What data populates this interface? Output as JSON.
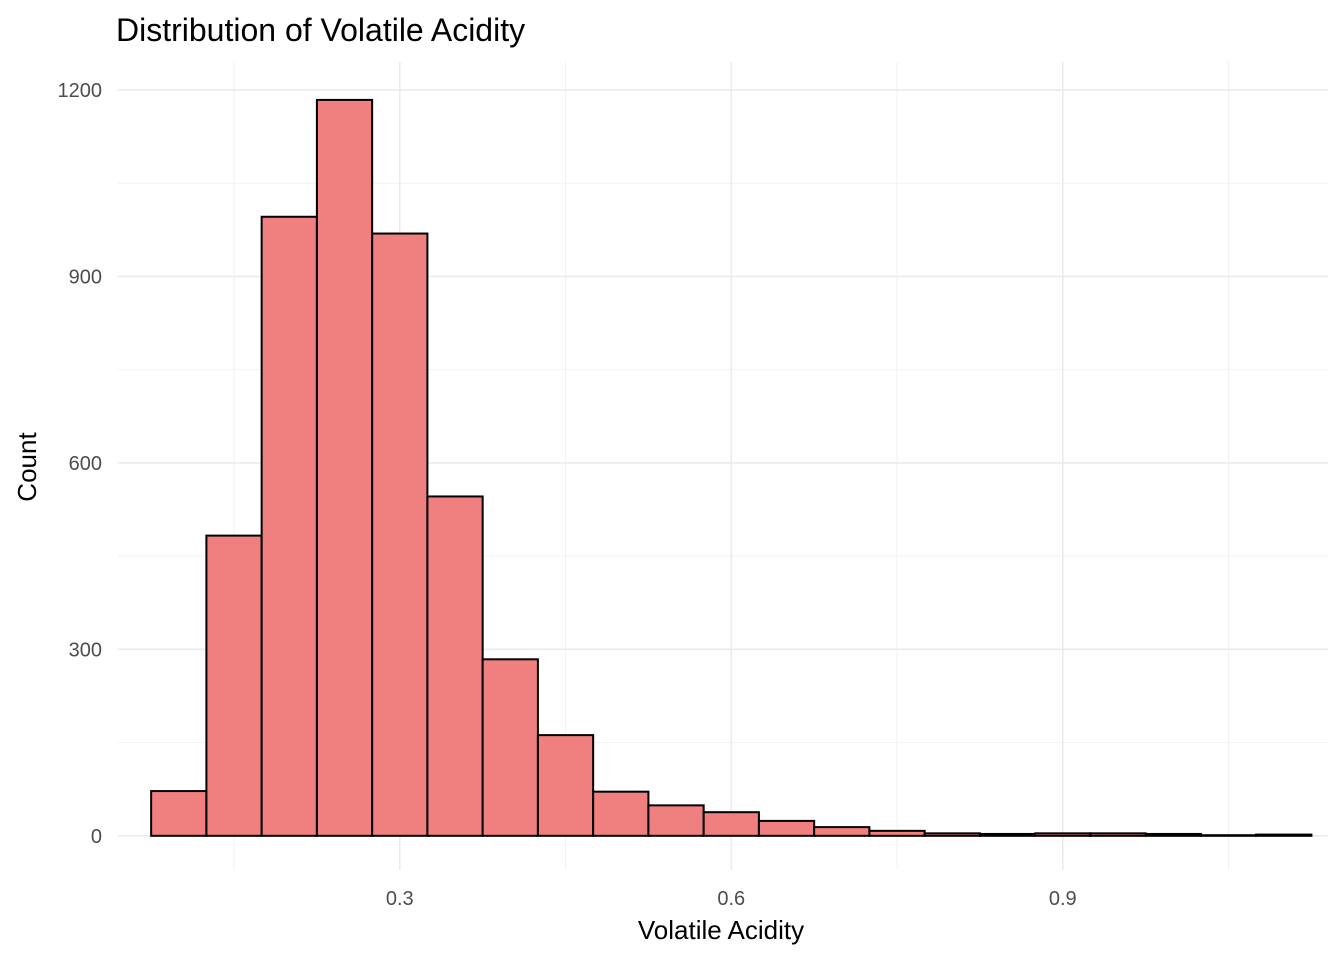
{
  "chart_data": {
    "type": "bar",
    "title": "Distribution of Volatile Acidity",
    "xlabel": "Volatile Acidity",
    "ylabel": "Count",
    "xlim": [
      0.045,
      1.14
    ],
    "ylim": [
      -55,
      1245
    ],
    "x_ticks": [
      0.3,
      0.6,
      0.9
    ],
    "x_tick_labels": [
      "0.3",
      "0.6",
      "0.9"
    ],
    "y_ticks": [
      0,
      300,
      600,
      900,
      1200
    ],
    "y_tick_labels": [
      "0",
      "300",
      "600",
      "900",
      "1200"
    ],
    "grid": true,
    "legend": "none",
    "bin_width": 0.05,
    "bins": [
      {
        "x0": 0.075,
        "x1": 0.125,
        "count": 72
      },
      {
        "x0": 0.125,
        "x1": 0.175,
        "count": 483
      },
      {
        "x0": 0.175,
        "x1": 0.225,
        "count": 996
      },
      {
        "x0": 0.225,
        "x1": 0.275,
        "count": 1184
      },
      {
        "x0": 0.275,
        "x1": 0.325,
        "count": 969
      },
      {
        "x0": 0.325,
        "x1": 0.375,
        "count": 546
      },
      {
        "x0": 0.375,
        "x1": 0.425,
        "count": 284
      },
      {
        "x0": 0.425,
        "x1": 0.475,
        "count": 162
      },
      {
        "x0": 0.475,
        "x1": 0.525,
        "count": 71
      },
      {
        "x0": 0.525,
        "x1": 0.575,
        "count": 49
      },
      {
        "x0": 0.575,
        "x1": 0.625,
        "count": 38
      },
      {
        "x0": 0.625,
        "x1": 0.675,
        "count": 24
      },
      {
        "x0": 0.675,
        "x1": 0.725,
        "count": 14
      },
      {
        "x0": 0.725,
        "x1": 0.775,
        "count": 8
      },
      {
        "x0": 0.775,
        "x1": 0.825,
        "count": 4
      },
      {
        "x0": 0.825,
        "x1": 0.875,
        "count": 3
      },
      {
        "x0": 0.875,
        "x1": 0.925,
        "count": 4
      },
      {
        "x0": 0.925,
        "x1": 0.975,
        "count": 4
      },
      {
        "x0": 0.975,
        "x1": 1.025,
        "count": 3
      },
      {
        "x0": 1.025,
        "x1": 1.075,
        "count": 1
      },
      {
        "x0": 1.075,
        "x1": 1.125,
        "count": 2
      }
    ],
    "colors": {
      "fill": "#f08080",
      "stroke": "#000000",
      "grid_major": "#ebebeb",
      "grid_minor": "#f2f2f2",
      "tick_text": "#4d4d4d"
    }
  }
}
